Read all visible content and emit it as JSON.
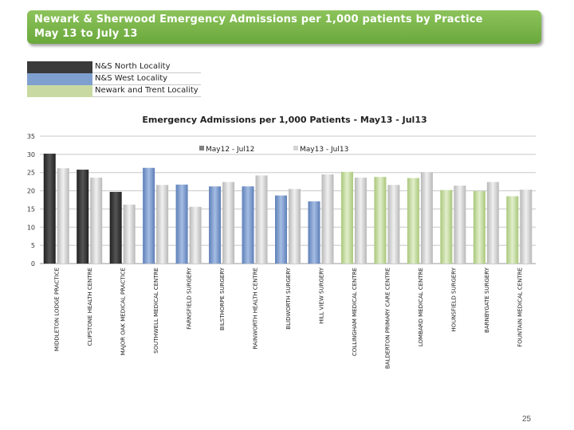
{
  "header": {
    "title_line1": "Newark & Sherwood Emergency Admissions per 1,000 patients by Practice",
    "title_line2": "May 13 to July 13"
  },
  "locality_legend": [
    {
      "label": "N&S North Locality",
      "color": "#3a3a3a"
    },
    {
      "label": "N&S West Locality",
      "color": "#7f9fcf"
    },
    {
      "label": "Newark and Trent Locality",
      "color": "#c8daa2"
    }
  ],
  "page_number": "25",
  "chart_data": {
    "type": "bar",
    "title": "Emergency Admissions per 1,000 Patients - May13 - Jul13",
    "categories": [
      "MIDDLETON LODGE PRACTICE",
      "CLIPSTONE HEALTH CENTRE",
      "MAJOR OAK MEDICAL PRACTICE",
      "SOUTHWELL MEDICAL CENTRE",
      "FARNSFIELD SURGERY",
      "BILSTHORPE SURGERY",
      "RAINWORTH HEALTH CENTRE",
      "BLIDWORTH SURGERY",
      "HILL VIEW SURGERY",
      "COLLINGHAM MEDICAL CENTRE",
      "BALDERTON PRIMARY CARE CENTRE",
      "LOMBARD MEDICAL CENTRE",
      "HOUNSFIELD SURGERY",
      "BARNBYGATE SURGERY",
      "FOUNTAIN MEDICAL CENTRE"
    ],
    "locality_index": [
      0,
      0,
      0,
      1,
      1,
      1,
      1,
      1,
      1,
      2,
      2,
      2,
      2,
      2,
      2
    ],
    "series": [
      {
        "name": "May12 - Jul12",
        "values": [
          30.2,
          25.8,
          19.7,
          26.3,
          21.7,
          21.2,
          21.2,
          18.7,
          17.1,
          25.2,
          23.8,
          23.5,
          20.2,
          19.9,
          18.5
        ]
      },
      {
        "name": "May13 - Jul13",
        "values": [
          26.2,
          23.6,
          16.2,
          21.6,
          15.6,
          22.4,
          24.2,
          20.5,
          24.5,
          23.6,
          21.6,
          25.1,
          21.4,
          22.4,
          20.3
        ]
      }
    ],
    "series_legend_colors": [
      "#808080",
      "#d4d4d4"
    ],
    "yticks": [
      0,
      5,
      10,
      15,
      20,
      25,
      30,
      35
    ],
    "ylim": [
      0,
      35
    ],
    "grid": true,
    "legend_position": "top-center"
  }
}
